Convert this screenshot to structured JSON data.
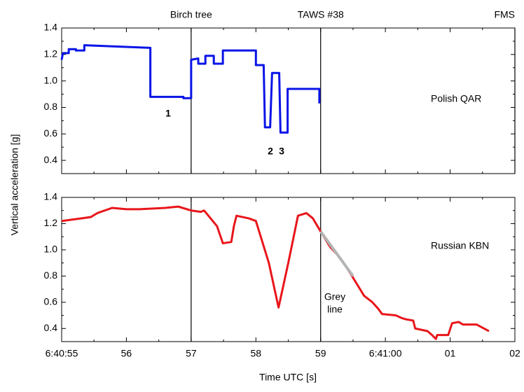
{
  "chart_data": [
    {
      "type": "line",
      "ylabel": "Vertical acceleration [g]",
      "events": [
        "Birch tree",
        "TAWS #38",
        "FMS"
      ],
      "event_x": [
        57,
        59,
        62
      ],
      "annotations": [
        "Polish QAR",
        "1",
        "2",
        "3"
      ],
      "annotation_colors": [
        "#000000",
        "#e8312a",
        "#e8312a",
        "#e8312a"
      ],
      "xlim": [
        55,
        62
      ],
      "xticks": [
        55,
        56,
        57,
        58,
        59,
        60,
        61,
        62
      ],
      "ylim": [
        0.3,
        1.4
      ],
      "yticks": [
        0.4,
        0.6,
        0.8,
        {
          "value": 1,
          "label": "1.0"
        },
        1.2,
        1.4
      ],
      "series": [
        {
          "color": "#0a14e6",
          "x": [
            55.0,
            55.02,
            55.11,
            55.11,
            55.22,
            55.22,
            55.35,
            55.35,
            56.37,
            56.37,
            56.88,
            56.88,
            57.0,
            57.0,
            57.11,
            57.11,
            57.22,
            57.22,
            57.35,
            57.35,
            57.49,
            57.49,
            58.0,
            58.0,
            58.12,
            58.14,
            58.22,
            58.25,
            58.36,
            58.38,
            58.49,
            58.49,
            58.98,
            58.98
          ],
          "values": [
            1.16,
            1.21,
            1.21,
            1.24,
            1.24,
            1.23,
            1.23,
            1.27,
            1.25,
            0.88,
            0.88,
            0.87,
            0.87,
            1.16,
            1.17,
            1.13,
            1.13,
            1.19,
            1.19,
            1.13,
            1.13,
            1.23,
            1.23,
            1.12,
            1.12,
            0.65,
            0.65,
            1.06,
            1.06,
            0.61,
            0.61,
            0.94,
            0.94,
            0.83
          ]
        }
      ]
    },
    {
      "type": "line",
      "xlabel": "Time UTC [s]",
      "event_x": [
        57,
        59
      ],
      "annotations": [
        "Russian KBN",
        "Grey",
        "line"
      ],
      "annotation_colors": [
        "#000000",
        "#999999",
        "#999999"
      ],
      "xlim": [
        55,
        62
      ],
      "xticks": [
        {
          "value": 55,
          "label": "6:40:55"
        },
        56,
        57,
        58,
        59,
        {
          "value": 60,
          "label": "6:41:00"
        },
        {
          "value": 61,
          "label": "01"
        },
        {
          "value": 62,
          "label": "02"
        }
      ],
      "ylim": [
        0.3,
        1.4
      ],
      "yticks": [
        0.4,
        0.6,
        0.8,
        {
          "value": 1,
          "label": "1.0"
        },
        1.2,
        1.4
      ],
      "series": [
        {
          "color": "#e8161b",
          "x": [
            55.0,
            55.3,
            55.45,
            55.55,
            55.78,
            56.0,
            56.2,
            56.6,
            56.8,
            57.0,
            57.15,
            57.2,
            57.4,
            57.49,
            57.62,
            57.66,
            57.7,
            57.89,
            58.0,
            58.2,
            58.35,
            58.5,
            58.65,
            58.78,
            58.88,
            59.0,
            59.15,
            59.3,
            59.46,
            59.67,
            59.8,
            59.89,
            59.95,
            60.16,
            60.25,
            60.32,
            60.43,
            60.46,
            60.65,
            60.72,
            60.78,
            60.8,
            60.97,
            61.03,
            61.13,
            61.2,
            61.41,
            61.6
          ],
          "values": [
            1.22,
            1.24,
            1.25,
            1.28,
            1.32,
            1.31,
            1.31,
            1.32,
            1.33,
            1.3,
            1.29,
            1.3,
            1.18,
            1.05,
            1.06,
            1.18,
            1.26,
            1.24,
            1.22,
            0.9,
            0.56,
            0.9,
            1.26,
            1.28,
            1.24,
            1.14,
            1.02,
            0.94,
            0.82,
            0.65,
            0.6,
            0.55,
            0.51,
            0.5,
            0.48,
            0.47,
            0.46,
            0.4,
            0.38,
            0.35,
            0.32,
            0.35,
            0.35,
            0.44,
            0.45,
            0.43,
            0.43,
            0.38
          ]
        },
        {
          "color": "#b4b4b4",
          "x": [
            59.0,
            59.5
          ],
          "values": [
            1.14,
            0.8
          ]
        }
      ]
    }
  ]
}
